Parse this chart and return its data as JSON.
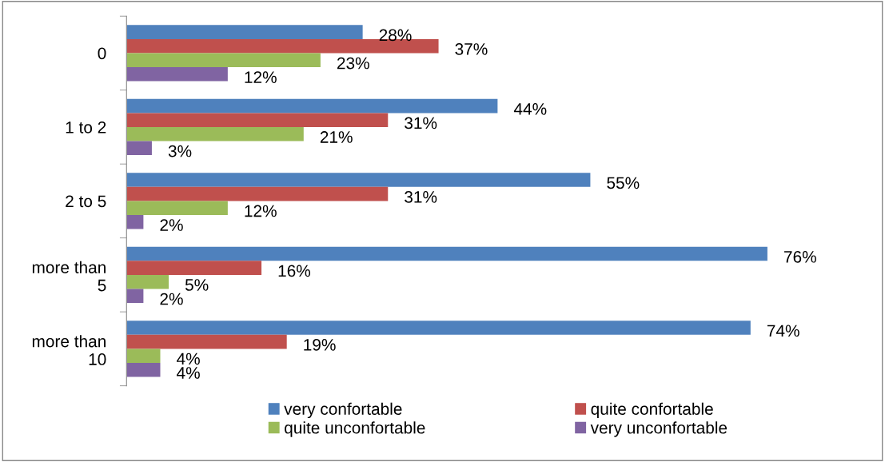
{
  "chart_data": {
    "type": "bar",
    "orientation": "horizontal",
    "categories": [
      "0",
      "1 to 2",
      "2 to 5",
      "more than\n5",
      "more than\n10"
    ],
    "series": [
      {
        "name": "very confortable",
        "color": "#4f81bd",
        "values": [
          28,
          44,
          55,
          76,
          74
        ],
        "value_labels": [
          "28%",
          "44%",
          "55%",
          "76%",
          "74%"
        ]
      },
      {
        "name": "quite confortable",
        "color": "#c0504d",
        "values": [
          37,
          31,
          31,
          16,
          19
        ],
        "value_labels": [
          "37%",
          "31%",
          "31%",
          "16%",
          "19%"
        ]
      },
      {
        "name": "quite unconfortable",
        "color": "#9bbb59",
        "values": [
          23,
          21,
          12,
          5,
          4
        ],
        "value_labels": [
          "23%",
          "21%",
          "12%",
          "5%",
          "4%"
        ]
      },
      {
        "name": "very unconfortable",
        "color": "#8064a2",
        "values": [
          12,
          3,
          2,
          2,
          4
        ],
        "value_labels": [
          "12%",
          "3%",
          "2%",
          "2%",
          "4%"
        ]
      }
    ],
    "legend": "bottom",
    "grid": false
  }
}
